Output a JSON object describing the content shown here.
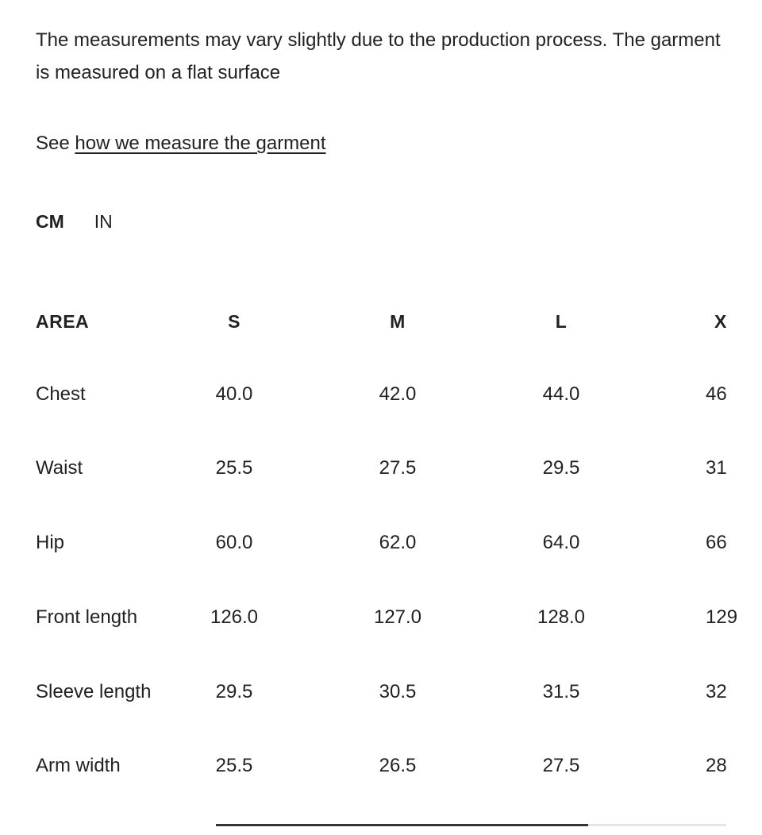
{
  "intro": "The measurements may vary slightly due to the production process. The garment is measured on a flat surface",
  "see_prefix": "See ",
  "see_link": "how we measure the garment",
  "units": [
    {
      "label": "CM",
      "active": true
    },
    {
      "label": "IN",
      "active": false
    }
  ],
  "table": {
    "area_header": "AREA",
    "size_headers": [
      "S",
      "M",
      "L",
      "X"
    ],
    "rows": [
      {
        "area": "Chest",
        "values": [
          "40.0",
          "42.0",
          "44.0",
          "46"
        ]
      },
      {
        "area": "Waist",
        "values": [
          "25.5",
          "27.5",
          "29.5",
          "31"
        ]
      },
      {
        "area": "Hip",
        "values": [
          "60.0",
          "62.0",
          "64.0",
          "66"
        ]
      },
      {
        "area": "Front length",
        "values": [
          "126.0",
          "127.0",
          "128.0",
          "129"
        ]
      },
      {
        "area": "Sleeve length",
        "values": [
          "29.5",
          "30.5",
          "31.5",
          "32"
        ]
      },
      {
        "area": "Arm width",
        "values": [
          "25.5",
          "26.5",
          "27.5",
          "28"
        ]
      }
    ]
  },
  "scrollbar": {
    "thumb_fraction": 0.73,
    "thumb_color": "#333333",
    "track_color": "#e6e6e6"
  }
}
